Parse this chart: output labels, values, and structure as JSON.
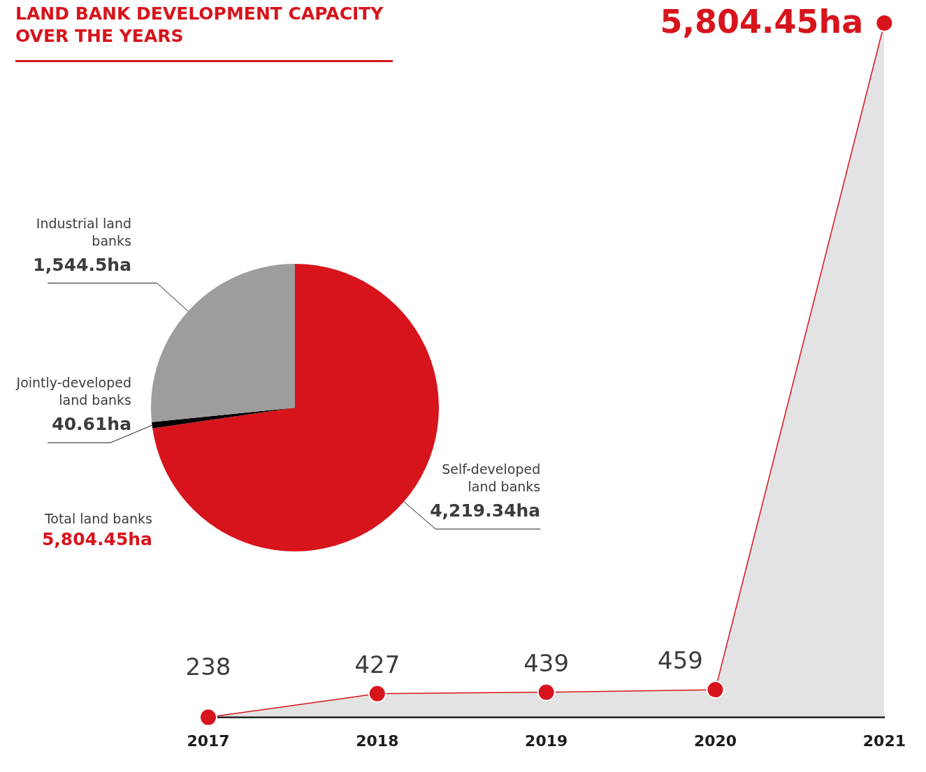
{
  "chart_data": [
    {
      "type": "area",
      "title": "LAND BANK DEVELOPMENT CAPACITY OVER THE YEARS",
      "categories": [
        "2017",
        "2018",
        "2019",
        "2020",
        "2021"
      ],
      "series": [
        {
          "color": "#d7141c",
          "values": [
            238,
            427,
            439,
            459,
            5804.45
          ],
          "value_labels": [
            "238",
            "427",
            "439",
            "459",
            "5,804.45ha"
          ]
        }
      ],
      "marker": "circle",
      "data_labels": true,
      "grid": false,
      "legend": false,
      "tick_labels": "x"
    },
    {
      "type": "pie",
      "categories": [
        "Self-developed land banks",
        "Jointly-developed land banks",
        "Industrial land banks"
      ],
      "values": [
        4219.34,
        40.61,
        1544.5
      ],
      "colors": [
        "#d7141c",
        "#000000",
        "#9d9d9c"
      ],
      "value_labels": [
        "4,219.34ha",
        "40.61ha",
        "1,544.5ha"
      ],
      "annotations": [
        "Total land banks",
        "5,804.45ha"
      ],
      "legend": false
    }
  ]
}
